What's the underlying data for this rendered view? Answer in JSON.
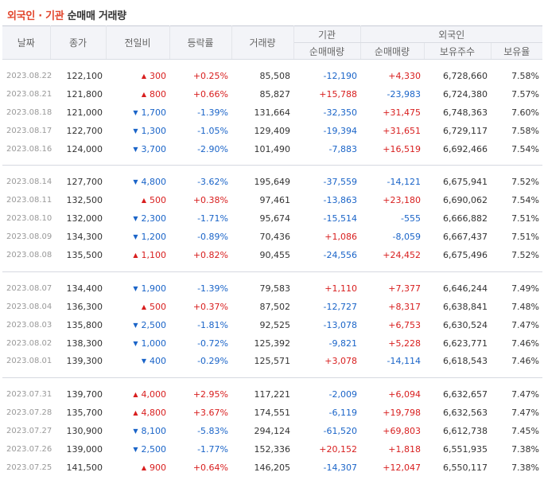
{
  "title": {
    "part_a": "외국인 · 기관",
    "part_b": "순매매 거래량"
  },
  "headers": {
    "date": "날짜",
    "close": "종가",
    "change": "전일비",
    "rate": "등락률",
    "volume": "거래량",
    "institution": "기관",
    "foreign": "외국인",
    "inst_net": "순매매량",
    "foreign_net": "순매매량",
    "holdings": "보유주수",
    "ratio": "보유율"
  },
  "groups": [
    [
      {
        "date": "2023.08.22",
        "close": "122,100",
        "dir": "up",
        "change": "300",
        "rate": "+0.25%",
        "volume": "85,508",
        "inst": "-12,190",
        "foreign": "+4,330",
        "holdings": "6,728,660",
        "ratio": "7.58%"
      },
      {
        "date": "2023.08.21",
        "close": "121,800",
        "dir": "up",
        "change": "800",
        "rate": "+0.66%",
        "volume": "85,827",
        "inst": "+15,788",
        "foreign": "-23,983",
        "holdings": "6,724,380",
        "ratio": "7.57%"
      },
      {
        "date": "2023.08.18",
        "close": "121,000",
        "dir": "down",
        "change": "1,700",
        "rate": "-1.39%",
        "volume": "131,664",
        "inst": "-32,350",
        "foreign": "+31,475",
        "holdings": "6,748,363",
        "ratio": "7.60%"
      },
      {
        "date": "2023.08.17",
        "close": "122,700",
        "dir": "down",
        "change": "1,300",
        "rate": "-1.05%",
        "volume": "129,409",
        "inst": "-19,394",
        "foreign": "+31,651",
        "holdings": "6,729,117",
        "ratio": "7.58%"
      },
      {
        "date": "2023.08.16",
        "close": "124,000",
        "dir": "down",
        "change": "3,700",
        "rate": "-2.90%",
        "volume": "101,490",
        "inst": "-7,883",
        "foreign": "+16,519",
        "holdings": "6,692,466",
        "ratio": "7.54%"
      }
    ],
    [
      {
        "date": "2023.08.14",
        "close": "127,700",
        "dir": "down",
        "change": "4,800",
        "rate": "-3.62%",
        "volume": "195,649",
        "inst": "-37,559",
        "foreign": "-14,121",
        "holdings": "6,675,941",
        "ratio": "7.52%"
      },
      {
        "date": "2023.08.11",
        "close": "132,500",
        "dir": "up",
        "change": "500",
        "rate": "+0.38%",
        "volume": "97,461",
        "inst": "-13,863",
        "foreign": "+23,180",
        "holdings": "6,690,062",
        "ratio": "7.54%"
      },
      {
        "date": "2023.08.10",
        "close": "132,000",
        "dir": "down",
        "change": "2,300",
        "rate": "-1.71%",
        "volume": "95,674",
        "inst": "-15,514",
        "foreign": "-555",
        "holdings": "6,666,882",
        "ratio": "7.51%"
      },
      {
        "date": "2023.08.09",
        "close": "134,300",
        "dir": "down",
        "change": "1,200",
        "rate": "-0.89%",
        "volume": "70,436",
        "inst": "+1,086",
        "foreign": "-8,059",
        "holdings": "6,667,437",
        "ratio": "7.51%"
      },
      {
        "date": "2023.08.08",
        "close": "135,500",
        "dir": "up",
        "change": "1,100",
        "rate": "+0.82%",
        "volume": "90,455",
        "inst": "-24,556",
        "foreign": "+24,452",
        "holdings": "6,675,496",
        "ratio": "7.52%"
      }
    ],
    [
      {
        "date": "2023.08.07",
        "close": "134,400",
        "dir": "down",
        "change": "1,900",
        "rate": "-1.39%",
        "volume": "79,583",
        "inst": "+1,110",
        "foreign": "+7,377",
        "holdings": "6,646,244",
        "ratio": "7.49%"
      },
      {
        "date": "2023.08.04",
        "close": "136,300",
        "dir": "up",
        "change": "500",
        "rate": "+0.37%",
        "volume": "87,502",
        "inst": "-12,727",
        "foreign": "+8,317",
        "holdings": "6,638,841",
        "ratio": "7.48%"
      },
      {
        "date": "2023.08.03",
        "close": "135,800",
        "dir": "down",
        "change": "2,500",
        "rate": "-1.81%",
        "volume": "92,525",
        "inst": "-13,078",
        "foreign": "+6,753",
        "holdings": "6,630,524",
        "ratio": "7.47%"
      },
      {
        "date": "2023.08.02",
        "close": "138,300",
        "dir": "down",
        "change": "1,000",
        "rate": "-0.72%",
        "volume": "125,392",
        "inst": "-9,821",
        "foreign": "+5,228",
        "holdings": "6,623,771",
        "ratio": "7.46%"
      },
      {
        "date": "2023.08.01",
        "close": "139,300",
        "dir": "down",
        "change": "400",
        "rate": "-0.29%",
        "volume": "125,571",
        "inst": "+3,078",
        "foreign": "-14,114",
        "holdings": "6,618,543",
        "ratio": "7.46%"
      }
    ],
    [
      {
        "date": "2023.07.31",
        "close": "139,700",
        "dir": "up",
        "change": "4,000",
        "rate": "+2.95%",
        "volume": "117,221",
        "inst": "-2,009",
        "foreign": "+6,094",
        "holdings": "6,632,657",
        "ratio": "7.47%"
      },
      {
        "date": "2023.07.28",
        "close": "135,700",
        "dir": "up",
        "change": "4,800",
        "rate": "+3.67%",
        "volume": "174,551",
        "inst": "-6,119",
        "foreign": "+19,798",
        "holdings": "6,632,563",
        "ratio": "7.47%"
      },
      {
        "date": "2023.07.27",
        "close": "130,900",
        "dir": "down",
        "change": "8,100",
        "rate": "-5.83%",
        "volume": "294,124",
        "inst": "-61,520",
        "foreign": "+69,803",
        "holdings": "6,612,738",
        "ratio": "7.45%"
      },
      {
        "date": "2023.07.26",
        "close": "139,000",
        "dir": "down",
        "change": "2,500",
        "rate": "-1.77%",
        "volume": "152,336",
        "inst": "+20,152",
        "foreign": "+1,818",
        "holdings": "6,551,935",
        "ratio": "7.38%"
      },
      {
        "date": "2023.07.25",
        "close": "141,500",
        "dir": "up",
        "change": "900",
        "rate": "+0.64%",
        "volume": "146,205",
        "inst": "-14,307",
        "foreign": "+12,047",
        "holdings": "6,550,117",
        "ratio": "7.38%"
      }
    ]
  ],
  "colors": {
    "up": "#d81e1e",
    "down": "#1a64c8",
    "title_accent": "#e2462d"
  },
  "icons": {
    "up": "triangle-up-icon",
    "down": "triangle-down-icon"
  }
}
